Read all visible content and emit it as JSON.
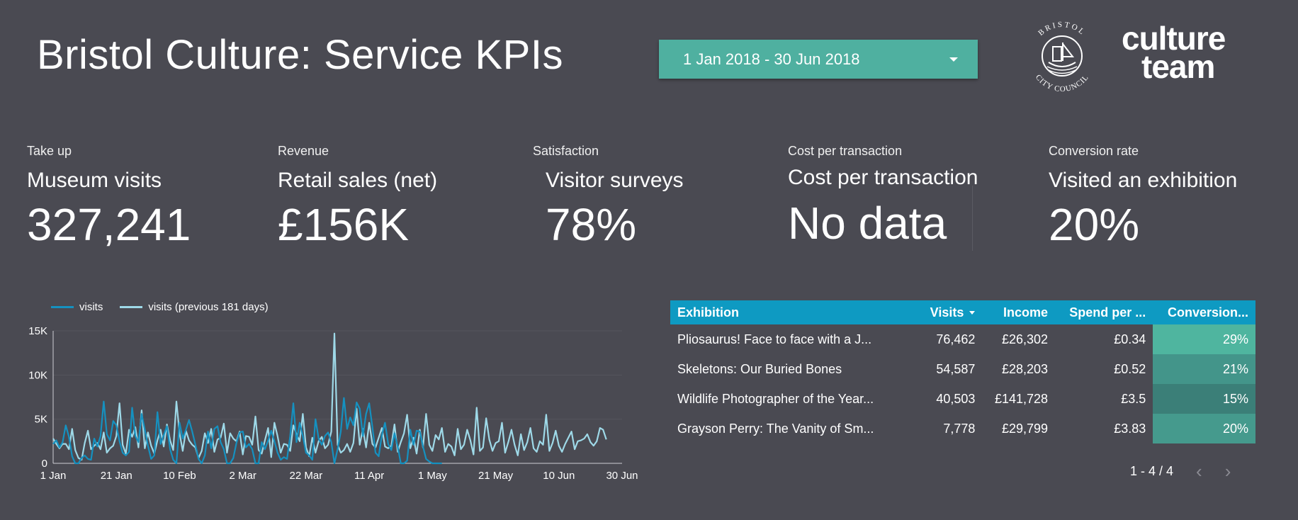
{
  "header": {
    "title": "Bristol Culture: Service KPIs",
    "date_range": "1 Jan 2018 - 30 Jun 2018",
    "seal_text_top": "BRISTOL",
    "seal_text_bottom": "CITY COUNCIL",
    "logo_line1": "culture",
    "logo_line2": "team"
  },
  "kpis": [
    {
      "category": "Take up",
      "name": "Museum visits",
      "value": "327,241"
    },
    {
      "category": "Revenue",
      "name": "Retail sales (net)",
      "value": "£156K"
    },
    {
      "category": "Satisfaction",
      "name": "Visitor surveys",
      "value": "78%"
    },
    {
      "category": "Cost per transaction",
      "name": "Cost per transaction",
      "value": "No data"
    },
    {
      "category": "Conversion rate",
      "name": "Visited an exhibition",
      "value": "20%"
    }
  ],
  "chart_data": {
    "type": "line",
    "series": [
      {
        "name": "visits",
        "color": "#1591c0",
        "values": [
          2200,
          2600,
          1800,
          2400,
          4300,
          3000,
          800,
          0,
          0,
          600,
          900,
          500,
          400,
          2800,
          1900,
          3100,
          7000,
          3300,
          2600,
          4800,
          4300,
          2500,
          1200,
          900,
          1300,
          6300,
          3100,
          2400,
          5600,
          3800,
          2000,
          500,
          900,
          5800,
          2200,
          3200,
          4200,
          1600,
          400,
          0,
          4600,
          2800,
          3800,
          4900,
          3600,
          2100,
          500,
          0,
          900,
          3600,
          1700,
          3900,
          4200,
          2400,
          1600,
          0,
          0,
          600,
          2300,
          3500,
          3600,
          1800,
          2200,
          1600,
          0,
          0,
          2400,
          1600,
          2600,
          3700,
          2500,
          1200,
          400,
          700,
          500,
          3100,
          6800,
          2400,
          4600,
          3100,
          1200,
          900,
          400,
          5000,
          2800,
          2100,
          3100,
          3500,
          2400,
          0,
          1600,
          3600,
          7400,
          3900,
          5200,
          4300,
          6900,
          6200,
          3100,
          5600,
          6800,
          4100,
          1200,
          800,
          3200,
          4600,
          2200,
          1500,
          3400,
          1900,
          0,
          0,
          300,
          3800,
          2100,
          3700,
          3600,
          1900,
          500,
          200,
          0,
          0,
          0,
          0
        ]
      },
      {
        "name": "visits (previous 181 days)",
        "color": "#9ed9e8",
        "values": [
          2800,
          2200,
          1700,
          2200,
          2200,
          1600,
          3900,
          1500,
          600,
          400,
          2300,
          3700,
          1600,
          2000,
          2300,
          1600,
          3500,
          1200,
          1700,
          2000,
          3100,
          6800,
          2100,
          1100,
          3800,
          3000,
          4100,
          1800,
          6000,
          1700,
          3500,
          2000,
          1100,
          2600,
          3800,
          1900,
          4400,
          2600,
          1500,
          7000,
          3400,
          1400,
          3700,
          2600,
          2100,
          1800,
          600,
          1400,
          3400,
          2300,
          3900,
          1300,
          2700,
          2900,
          4500,
          1200,
          3400,
          2800,
          2500,
          3600,
          1000,
          3100,
          3000,
          2100,
          5300,
          1500,
          1100,
          2600,
          4000,
          700,
          4600,
          3100,
          1200,
          2200,
          2100,
          1400,
          4300,
          3300,
          2500,
          5600,
          1800,
          800,
          2900,
          1200,
          2500,
          3000,
          1700,
          2100,
          3600,
          14700,
          2100,
          1200,
          1500,
          2200,
          1300,
          2300,
          6200,
          2100,
          3900,
          1800,
          4600,
          2200,
          1800,
          2900,
          4000,
          1900,
          1700,
          2000,
          4400,
          1300,
          2400,
          3400,
          5500,
          1700,
          2900,
          1100,
          3800,
          1800,
          5600,
          2100,
          1400,
          3200,
          2700,
          4000,
          1300,
          2200,
          1900,
          900,
          3900,
          1600,
          2100,
          3800,
          2600,
          1000,
          6300,
          1400,
          1800,
          5100,
          2700,
          1400,
          2300,
          2500,
          4600,
          1200,
          2400,
          3800,
          2100,
          900,
          3300,
          1500,
          2400,
          4000,
          1700,
          1300,
          2500,
          2100,
          5500,
          1400,
          2300,
          3700,
          2000,
          1300,
          2200,
          2900,
          3600,
          1600,
          2500,
          2600,
          2800,
          3300,
          2400,
          2000,
          2500,
          4000,
          3800,
          2700
        ]
      }
    ],
    "x_ticks": [
      "1 Jan",
      "21 Jan",
      "10 Feb",
      "2 Mar",
      "22 Mar",
      "11 Apr",
      "1 May",
      "21 May",
      "10 Jun",
      "30 Jun"
    ],
    "y_ticks": [
      "15K",
      "10K",
      "5K",
      "0"
    ],
    "ylim": [
      0,
      15000
    ]
  },
  "table": {
    "headers": [
      "Exhibition",
      "Visits",
      "Income",
      "Spend per ...",
      "Conversion..."
    ],
    "rows": [
      [
        "Pliosaurus! Face to face with a J...",
        "76,462",
        "£26,302",
        "£0.34",
        "29%"
      ],
      [
        "Skeletons: Our Buried Bones",
        "54,587",
        "£28,203",
        "£0.52",
        "21%"
      ],
      [
        "Wildlife Photographer of the Year...",
        "40,503",
        "£141,728",
        "£3.5",
        "15%"
      ],
      [
        "Grayson Perry: The Vanity of Sm...",
        "7,778",
        "£29,799",
        "£3.83",
        "20%"
      ]
    ],
    "conversion_colors": [
      "#4fb59f",
      "#43958a",
      "#3b7f78",
      "#459a8d"
    ],
    "pagination": "1 - 4 / 4",
    "prev_icon": "‹",
    "next_icon": "›"
  }
}
